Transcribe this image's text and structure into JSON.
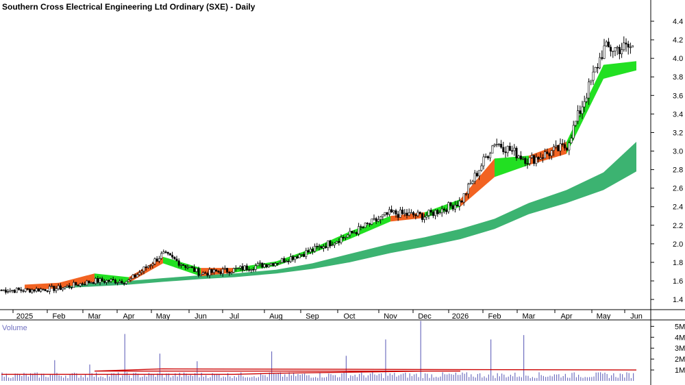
{
  "chart_data": {
    "type": "candlestick",
    "title": "Southern Cross Electrical Engineering Ltd Ordinary (SXE) - Daily",
    "price_axis": {
      "ticks": [
        "1.4",
        "1.6",
        "1.8",
        "2.0",
        "2.2",
        "2.4",
        "2.6",
        "2.8",
        "3.0",
        "3.2",
        "3.4",
        "3.6",
        "3.8",
        "4.0",
        "4.2",
        "4.4"
      ],
      "ylim": [
        1.29,
        4.57
      ]
    },
    "months": [
      "2025",
      "Feb",
      "Mar",
      "Apr",
      "May",
      "Jun",
      "Jul",
      "Aug",
      "Sep",
      "Oct",
      "Nov",
      "Dec",
      "2026",
      "Feb",
      "Mar",
      "Apr",
      "May",
      "Jun"
    ],
    "price_anchors": [
      [
        "2025",
        1.5
      ],
      [
        "Feb",
        1.52
      ],
      [
        "Mar",
        1.6
      ],
      [
        "Apr",
        1.6
      ],
      [
        "May",
        1.89
      ],
      [
        "Jun",
        1.68
      ],
      [
        "Jul",
        1.72
      ],
      [
        "Aug",
        1.8
      ],
      [
        "Sep",
        1.93
      ],
      [
        "Oct",
        2.1
      ],
      [
        "Nov",
        2.33
      ],
      [
        "Dec",
        2.3
      ],
      [
        "2026",
        2.45
      ],
      [
        "Feb",
        3.1
      ],
      [
        "Mar",
        2.9
      ],
      [
        "Apr",
        3.05
      ],
      [
        "May",
        4.1
      ],
      [
        "Jun",
        4.12
      ]
    ],
    "long_mma_band": {
      "color": "#3cb371",
      "points": [
        [
          "2025",
          1.52,
          1.55
        ],
        [
          "Feb",
          1.52,
          1.57
        ],
        [
          "Mar",
          1.54,
          1.58
        ],
        [
          "Apr",
          1.56,
          1.6
        ],
        [
          "May",
          1.59,
          1.63
        ],
        [
          "Jun",
          1.62,
          1.66
        ],
        [
          "Jul",
          1.64,
          1.68
        ],
        [
          "Aug",
          1.68,
          1.72
        ],
        [
          "Sep",
          1.73,
          1.79
        ],
        [
          "Oct",
          1.8,
          1.89
        ],
        [
          "Nov",
          1.9,
          2.0
        ],
        [
          "Dec",
          1.97,
          2.07
        ],
        [
          "2026",
          2.05,
          2.16
        ],
        [
          "Feb",
          2.16,
          2.27
        ],
        [
          "Mar",
          2.32,
          2.44
        ],
        [
          "Apr",
          2.44,
          2.58
        ],
        [
          "May",
          2.58,
          2.77
        ],
        [
          "Jun",
          2.78,
          3.1
        ]
      ]
    },
    "short_mma_band": {
      "color": "#22e022",
      "downtrend_color": "#f26322",
      "points": [
        [
          "2025",
          1.5,
          1.56,
          "down"
        ],
        [
          "Feb",
          1.52,
          1.58,
          "down"
        ],
        [
          "Mar",
          1.59,
          1.68,
          "up"
        ],
        [
          "Apr",
          1.58,
          1.64,
          "down"
        ],
        [
          "May",
          1.79,
          1.86,
          "up"
        ],
        [
          "Jun",
          1.65,
          1.74,
          "down"
        ],
        [
          "Jul",
          1.69,
          1.74,
          "up"
        ],
        [
          "Aug",
          1.76,
          1.81,
          "up"
        ],
        [
          "Sep",
          1.9,
          1.95,
          "up"
        ],
        [
          "Oct",
          2.05,
          2.13,
          "up"
        ],
        [
          "Nov",
          2.24,
          2.3,
          "down"
        ],
        [
          "Dec",
          2.28,
          2.34,
          "up"
        ],
        [
          "2026",
          2.4,
          2.48,
          "down"
        ],
        [
          "Feb",
          2.72,
          2.92,
          "up"
        ],
        [
          "Mar",
          2.85,
          2.95,
          "down"
        ],
        [
          "Apr",
          2.97,
          3.1,
          "up"
        ],
        [
          "May",
          3.78,
          3.93,
          "up"
        ],
        [
          "Jun",
          3.87,
          3.97,
          "up"
        ]
      ]
    },
    "volume": {
      "label": "Volume",
      "ticks": [
        "1M",
        "2M",
        "3M",
        "4M",
        "5M"
      ],
      "ylim": [
        0,
        5.4
      ],
      "bar_color": "#7070c0",
      "avg_color": "#cc0000",
      "peaks_M": [
        [
          "Feb",
          1.9
        ],
        [
          "Mar",
          1.5
        ],
        [
          "Apr",
          4.3
        ],
        [
          "Aug",
          2.7
        ],
        [
          "Oct",
          2.3
        ],
        [
          "Nov",
          3.8
        ],
        [
          "Dec",
          5.5
        ],
        [
          "Feb",
          3.8
        ],
        [
          "Mar",
          4.2
        ],
        [
          "May",
          2.5
        ],
        [
          "Jun",
          1.8
        ]
      ],
      "avg_level_M": [
        [
          "2025",
          0.6
        ],
        [
          "Jul",
          0.6
        ],
        [
          "Aug",
          0.7
        ],
        [
          "Oct",
          0.8
        ],
        [
          "Dec",
          0.9
        ],
        [
          "2026",
          0.9
        ],
        [
          "Mar",
          0.9
        ],
        [
          "May",
          1.1
        ],
        [
          "Jun",
          1.0
        ]
      ]
    }
  }
}
